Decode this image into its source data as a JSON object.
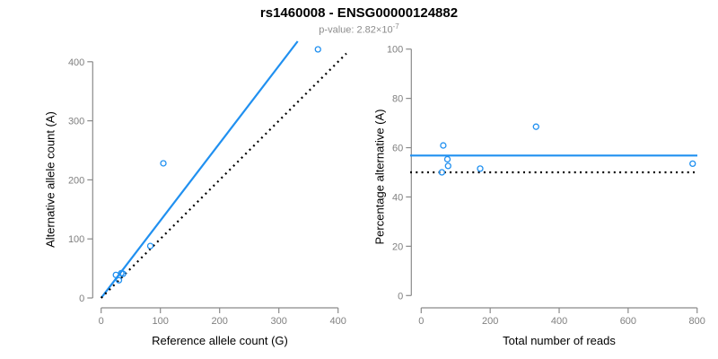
{
  "header": {
    "title": "rs1460008 - ENSG00000124882",
    "pvalue_prefix": "p-value: 2.82×10",
    "pvalue_exponent": "-7"
  },
  "colors": {
    "accent_blue": "#2090F0",
    "line_black": "#000000",
    "axis_gray": "#8a8a8a",
    "tick_label_gray": "#808080",
    "subtitle_gray": "#8c8c8c"
  },
  "chart_data": [
    {
      "type": "scatter",
      "name": "allele-counts-panel",
      "xlabel": "Reference allele count (G)",
      "ylabel": "Alternative allele count (A)",
      "xlim": [
        0,
        400
      ],
      "ylim": [
        0,
        400
      ],
      "xticks": [
        0,
        100,
        200,
        300,
        400
      ],
      "yticks": [
        0,
        100,
        200,
        300,
        400
      ],
      "grid": false,
      "points": [
        [
          25,
          39
        ],
        [
          34,
          42
        ],
        [
          37,
          41
        ],
        [
          30,
          30
        ],
        [
          83,
          88
        ],
        [
          105,
          228
        ],
        [
          366,
          421
        ]
      ],
      "lines": [
        {
          "type": "fit",
          "style": "solid",
          "color": "accent_blue",
          "slope": 1.31,
          "intercept": 0
        },
        {
          "type": "identity",
          "style": "dotted",
          "color": "line_black"
        }
      ]
    },
    {
      "type": "scatter",
      "name": "percentage-panel",
      "xlabel": "Total number of reads",
      "ylabel": "Percentage alternative (A)",
      "xlim": [
        0,
        800
      ],
      "ylim": [
        0,
        100
      ],
      "xticks": [
        0,
        200,
        400,
        600,
        800
      ],
      "yticks": [
        0,
        20,
        40,
        60,
        80,
        100
      ],
      "grid": false,
      "points": [
        [
          64,
          60.9
        ],
        [
          76,
          55.3
        ],
        [
          78,
          52.6
        ],
        [
          60,
          50.0
        ],
        [
          171,
          51.5
        ],
        [
          333,
          68.5
        ],
        [
          787,
          53.5
        ]
      ],
      "lines": [
        {
          "type": "hline",
          "style": "solid",
          "color": "accent_blue",
          "value": 56.8
        },
        {
          "type": "hline",
          "style": "dotted",
          "color": "line_black",
          "value": 50
        }
      ]
    }
  ]
}
